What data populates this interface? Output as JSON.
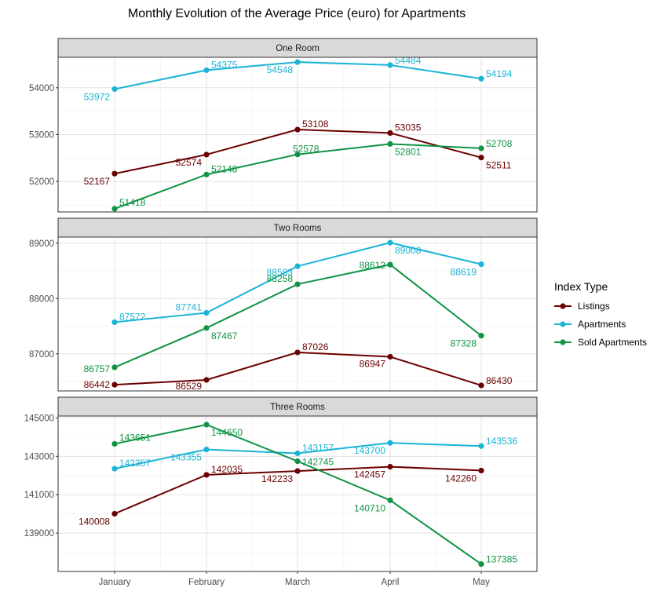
{
  "chart_data": {
    "type": "line",
    "title": "Monthly Evolution of the Average Price (euro) for Apartments",
    "categories": [
      "January",
      "February",
      "March",
      "April",
      "May"
    ],
    "legend": {
      "title": "Index Type",
      "position": "right",
      "items": [
        {
          "name": "Listings",
          "color": "#6b0000"
        },
        {
          "name": "Apartments",
          "color": "#1ab4d6"
        },
        {
          "name": "Sold Apartments",
          "color": "#0e9444"
        }
      ]
    },
    "grid": true,
    "facets": [
      {
        "name": "One Room",
        "ylim": [
          51350,
          54650
        ],
        "yticks": [
          52000,
          53000,
          54000
        ],
        "series": [
          {
            "name": "Listings",
            "values": [
              52167,
              52574,
              53108,
              53035,
              52511
            ]
          },
          {
            "name": "Apartments",
            "values": [
              53972,
              54375,
              54548,
              54484,
              54194
            ]
          },
          {
            "name": "Sold Apartments",
            "values": [
              51418,
              52148,
              52578,
              52801,
              52708
            ]
          }
        ]
      },
      {
        "name": "Two Rooms",
        "ylim": [
          86330,
          89110
        ],
        "yticks": [
          87000,
          88000,
          89000
        ],
        "series": [
          {
            "name": "Listings",
            "values": [
              86442,
              86529,
              87026,
              86947,
              86430
            ]
          },
          {
            "name": "Apartments",
            "values": [
              87572,
              87741,
              88583,
              89008,
              88619
            ]
          },
          {
            "name": "Sold Apartments",
            "values": [
              86757,
              87467,
              88258,
              88612,
              87328
            ]
          }
        ]
      },
      {
        "name": "Three Rooms",
        "ylim": [
          137000,
          145100
        ],
        "yticks": [
          139000,
          141000,
          143000,
          145000
        ],
        "series": [
          {
            "name": "Listings",
            "values": [
              140008,
              142035,
              142233,
              142457,
              142260
            ]
          },
          {
            "name": "Apartments",
            "values": [
              142357,
              143355,
              143157,
              143700,
              143536
            ]
          },
          {
            "name": "Sold Apartments",
            "values": [
              143651,
              144650,
              142745,
              140710,
              137385
            ]
          }
        ]
      }
    ]
  }
}
